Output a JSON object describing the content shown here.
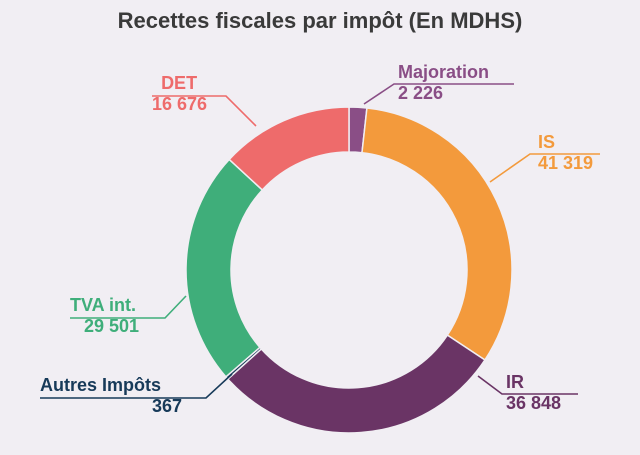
{
  "title": "Recettes fiscales par impôt (En MDHS)",
  "chart_data": {
    "type": "pie",
    "title": "Recettes fiscales par impôt (En MDHS)",
    "slices": [
      {
        "name": "Majoration",
        "value_label": "2 226",
        "value": 2226,
        "color": "#8a4e86"
      },
      {
        "name": "IS",
        "value_label": "41 319",
        "value": 41319,
        "color": "#f39a3c"
      },
      {
        "name": "IR",
        "value_label": "36 848",
        "value": 36848,
        "color": "#6a3465"
      },
      {
        "name": "Autres Impôts",
        "value_label": "367",
        "value": 367,
        "color": "#173a59"
      },
      {
        "name": "TVA int.",
        "value_label": "29 501",
        "value": 29501,
        "color": "#3fae7a"
      },
      {
        "name": "DET",
        "value_label": "16 676",
        "value": 16676,
        "color": "#ee6b6b"
      }
    ],
    "label_colors": {
      "Majoration": "#8a4e86",
      "IS": "#f39a3c",
      "IR": "#6a3465",
      "Autres Impôts": "#173a59",
      "TVA int.": "#3fae7a",
      "DET": "#ee6b6b"
    }
  }
}
